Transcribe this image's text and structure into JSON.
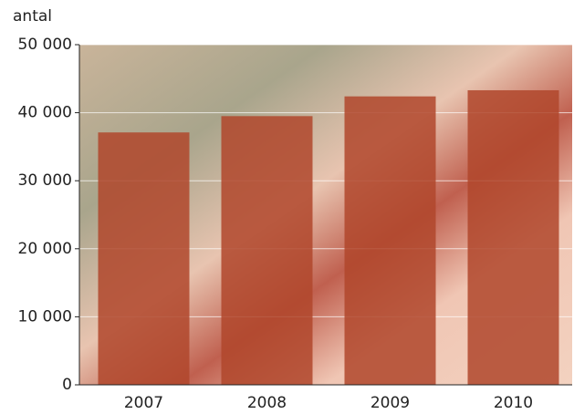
{
  "chart_data": {
    "type": "bar",
    "y_label": "antal",
    "categories": [
      "2007",
      "2008",
      "2009",
      "2010"
    ],
    "values": [
      37100,
      39500,
      42400,
      43300
    ],
    "color": "#b0472c",
    "ylim": [
      0,
      50000
    ],
    "yticks": [
      0,
      {
        "value": 10000,
        "label": "10 000"
      },
      {
        "value": 20000,
        "label": "20 000"
      },
      {
        "value": 30000,
        "label": "30 000"
      },
      {
        "value": 40000,
        "label": "40 000"
      },
      {
        "value": 50000,
        "label": "50 000"
      }
    ],
    "grid": true
  }
}
